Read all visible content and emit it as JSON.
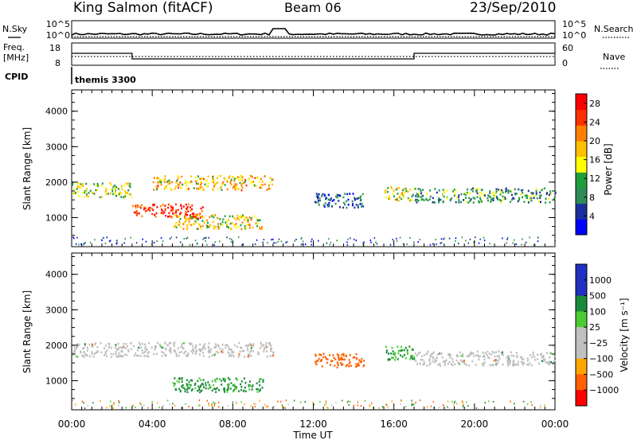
{
  "header": {
    "station": "King Salmon (fitACF)",
    "beam": "Beam 06",
    "date": "23/Sep/2010"
  },
  "top_strip": {
    "nsky_label": "N.Sky",
    "nsearch_label": "N.Search",
    "freq_label_1": "Freq.",
    "freq_label_2": "[MHz]",
    "nave_label": "Nave",
    "cpid_label": "CPID",
    "cpid_value": "themis 3300",
    "noise_ticks": [
      "10^5",
      "10^0"
    ],
    "noise_right_ticks": [
      "10^5",
      "10^0"
    ],
    "freq_ticks": [
      "18",
      "8"
    ],
    "nave_ticks": [
      "60",
      "0"
    ]
  },
  "colors": {
    "power_scale": [
      "#0000ff",
      "#1a2f9e",
      "#2e8b57",
      "#1f9e3a",
      "#ffff00",
      "#ffc000",
      "#ff8000",
      "#ff3000",
      "#ff0000"
    ],
    "velocity_scale": [
      "#2030c0",
      "#1a8a3a",
      "#4ccc33",
      "#c0c0c0",
      "#ffa500",
      "#ff6000",
      "#ff0000"
    ],
    "ground_scatter": "#bdbdbd"
  },
  "chart_data": [
    {
      "type": "heatmap",
      "title": "Power",
      "xlabel": "Time UT",
      "ylabel": "Slant Range [km]",
      "x_ticks": [
        "00:00",
        "04:00",
        "08:00",
        "12:00",
        "16:00",
        "20:00",
        "00:00"
      ],
      "xlim": [
        0,
        24
      ],
      "y_ticks": [
        1000,
        2000,
        3000,
        4000
      ],
      "ylim": [
        180,
        4600
      ],
      "colorbar": {
        "label": "Power [dB]",
        "ticks": [
          4,
          8,
          12,
          16,
          20,
          24,
          28
        ],
        "range": [
          0,
          30
        ]
      },
      "features": [
        {
          "t_start": 0.0,
          "t_end": 3.0,
          "range_km": 1800,
          "value_db": 14
        },
        {
          "t_start": 3.0,
          "t_end": 6.5,
          "range_km": 1200,
          "value_db": 26
        },
        {
          "t_start": 4.0,
          "t_end": 10.0,
          "range_km": 2000,
          "value_db": 18
        },
        {
          "t_start": 5.0,
          "t_end": 9.5,
          "range_km": 900,
          "value_db": 16
        },
        {
          "t_start": 12.0,
          "t_end": 14.5,
          "range_km": 1500,
          "value_db": 6
        },
        {
          "t_start": 15.5,
          "t_end": 17.0,
          "range_km": 1700,
          "value_db": 16
        },
        {
          "t_start": 17.0,
          "t_end": 24.0,
          "range_km": 1650,
          "value_db": 10
        }
      ]
    },
    {
      "type": "heatmap",
      "title": "Velocity",
      "xlabel": "Time UT",
      "ylabel": "Slant Range [km]",
      "x_ticks": [
        "00:00",
        "04:00",
        "08:00",
        "12:00",
        "16:00",
        "20:00",
        "00:00"
      ],
      "xlim": [
        0,
        24
      ],
      "y_ticks": [
        1000,
        2000,
        3000,
        4000
      ],
      "ylim": [
        180,
        4600
      ],
      "colorbar": {
        "label": "Velocity [m s⁻¹]",
        "ticks": [
          "1000",
          "500",
          "100",
          "25",
          "−25",
          "−100",
          "−500",
          "−1000"
        ]
      },
      "features": [
        {
          "t_start": 0.0,
          "t_end": 10.0,
          "range_km": 1900,
          "value_ms": 0,
          "ground_scatter": true
        },
        {
          "t_start": 5.0,
          "t_end": 9.5,
          "range_km": 900,
          "value_ms": 150
        },
        {
          "t_start": 12.0,
          "t_end": 14.5,
          "range_km": 1600,
          "value_ms": -300
        },
        {
          "t_start": 15.5,
          "t_end": 17.0,
          "range_km": 1800,
          "value_ms": 120
        },
        {
          "t_start": 17.0,
          "t_end": 24.0,
          "range_km": 1650,
          "value_ms": 0,
          "ground_scatter": true
        }
      ]
    }
  ]
}
